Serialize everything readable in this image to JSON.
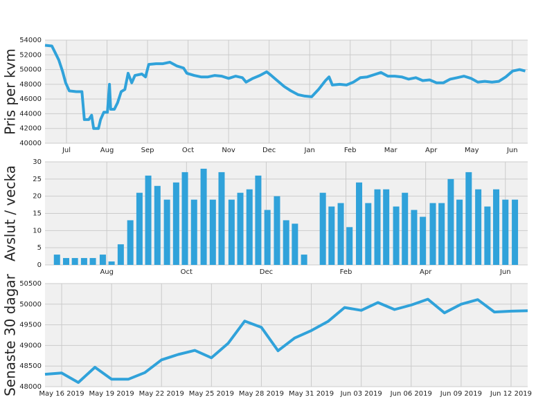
{
  "chart_data": [
    {
      "type": "line",
      "y_label": "Pris per kvm",
      "color": "#30a2da",
      "grid": true,
      "x": [
        -0.53,
        -0.36,
        -0.27,
        -0.19,
        -0.1,
        -0.02,
        0.07,
        0.24,
        0.38,
        0.44,
        0.55,
        0.62,
        0.67,
        0.79,
        0.84,
        0.92,
        1.01,
        1.06,
        1.09,
        1.18,
        1.26,
        1.35,
        1.44,
        1.52,
        1.61,
        1.69,
        1.86,
        1.95,
        2.03,
        2.21,
        2.38,
        2.55,
        2.72,
        2.89,
        2.97,
        3.15,
        3.32,
        3.49,
        3.66,
        3.83,
        4.0,
        4.17,
        4.34,
        4.43,
        4.6,
        4.77,
        4.94,
        5.03,
        5.2,
        5.37,
        5.54,
        5.71,
        5.88,
        6.05,
        6.22,
        6.39,
        6.48,
        6.56,
        6.74,
        6.91,
        7.08,
        7.25,
        7.42,
        7.59,
        7.76,
        7.93,
        8.1,
        8.27,
        8.44,
        8.62,
        8.79,
        8.96,
        9.13,
        9.3,
        9.47,
        9.64,
        9.81,
        9.98,
        10.15,
        10.32,
        10.5,
        10.67,
        10.84,
        11.01,
        11.18,
        11.32
      ],
      "values": [
        53300,
        53200,
        52200,
        51300,
        49800,
        48200,
        47100,
        47000,
        47000,
        43200,
        43200,
        43800,
        42000,
        42000,
        43200,
        44200,
        44200,
        48000,
        44600,
        44600,
        45500,
        47000,
        47300,
        49500,
        48200,
        49200,
        49400,
        49000,
        50700,
        50800,
        50800,
        51000,
        50500,
        50200,
        49500,
        49200,
        49000,
        49000,
        49200,
        49100,
        48800,
        49100,
        48900,
        48300,
        48800,
        49200,
        49700,
        49300,
        48500,
        47700,
        47100,
        46600,
        46400,
        46300,
        47300,
        48500,
        49000,
        47900,
        48000,
        47900,
        48300,
        48900,
        49000,
        49300,
        49600,
        49100,
        49100,
        49000,
        48700,
        48900,
        48500,
        48600,
        48200,
        48200,
        48700,
        48900,
        49100,
        48800,
        48300,
        48400,
        48300,
        48400,
        49000,
        49800,
        50000,
        49800
      ],
      "xlim": [
        -0.53,
        11.38
      ],
      "xticks": [
        {
          "value": 0,
          "label": "Jul"
        },
        {
          "value": 1,
          "label": "Aug"
        },
        {
          "value": 2,
          "label": "Sep"
        },
        {
          "value": 3,
          "label": "Oct"
        },
        {
          "value": 4,
          "label": "Nov"
        },
        {
          "value": 5,
          "label": "Dec"
        },
        {
          "value": 6,
          "label": "Jan"
        },
        {
          "value": 7,
          "label": "Feb"
        },
        {
          "value": 8,
          "label": "Mar"
        },
        {
          "value": 9,
          "label": "Apr"
        },
        {
          "value": 10,
          "label": "May"
        },
        {
          "value": 11,
          "label": "Jun"
        }
      ],
      "ylim": [
        40000,
        54000
      ],
      "yticks": [
        40000,
        42000,
        44000,
        46000,
        48000,
        50000,
        52000,
        54000
      ]
    },
    {
      "type": "bar",
      "y_label": "Avslut / vecka",
      "color": "#30a2da",
      "grid": true,
      "x": [
        -0.25,
        -0.02,
        0.2,
        0.43,
        0.65,
        0.9,
        1.12,
        1.35,
        1.59,
        1.82,
        2.04,
        2.27,
        2.51,
        2.74,
        2.96,
        3.19,
        3.43,
        3.66,
        3.88,
        4.13,
        4.35,
        4.58,
        4.8,
        5.03,
        5.27,
        5.5,
        5.72,
        5.95,
        6.42,
        6.64,
        6.87,
        7.09,
        7.33,
        7.56,
        7.79,
        8.01,
        8.26,
        8.48,
        8.71,
        8.93,
        9.18,
        9.4,
        9.63,
        9.85,
        10.08,
        10.32,
        10.55,
        10.77,
        11.0,
        11.24
      ],
      "values": [
        3,
        2,
        2,
        2,
        2,
        3,
        1,
        6,
        13,
        21,
        26,
        23,
        19,
        24,
        27,
        19,
        28,
        19,
        27,
        19,
        21,
        22,
        26,
        16,
        20,
        13,
        12,
        3,
        21,
        17,
        18,
        11,
        24,
        18,
        22,
        22,
        17,
        21,
        16,
        14,
        18,
        18,
        25,
        19,
        27,
        22,
        17,
        22,
        19,
        19
      ],
      "xlim": [
        -0.55,
        11.56
      ],
      "xticks": [
        {
          "value": 1,
          "label": "Aug"
        },
        {
          "value": 3,
          "label": "Oct"
        },
        {
          "value": 5,
          "label": "Dec"
        },
        {
          "value": 7,
          "label": "Feb"
        },
        {
          "value": 9,
          "label": "Apr"
        },
        {
          "value": 11,
          "label": "Jun"
        }
      ],
      "ylim": [
        0,
        30
      ],
      "yticks": [
        0,
        5,
        10,
        15,
        20,
        25,
        30
      ]
    },
    {
      "type": "line",
      "y_label": "Senaste 30 dagar",
      "color": "#30a2da",
      "grid": true,
      "x": [
        "2019-05-15",
        "2019-05-16",
        "2019-05-17",
        "2019-05-18",
        "2019-05-19",
        "2019-05-20",
        "2019-05-21",
        "2019-05-22",
        "2019-05-23",
        "2019-05-24",
        "2019-05-25",
        "2019-05-26",
        "2019-05-27",
        "2019-05-28",
        "2019-05-29",
        "2019-05-30",
        "2019-05-31",
        "2019-06-01",
        "2019-06-02",
        "2019-06-03",
        "2019-06-04",
        "2019-06-05",
        "2019-06-06",
        "2019-06-07",
        "2019-06-08",
        "2019-06-09",
        "2019-06-10",
        "2019-06-11",
        "2019-06-12",
        "2019-06-13"
      ],
      "values": [
        48300,
        48330,
        48100,
        48470,
        48180,
        48180,
        48340,
        48650,
        48780,
        48880,
        48700,
        49050,
        49590,
        49440,
        48870,
        49180,
        49360,
        49580,
        49920,
        49850,
        50040,
        49870,
        49980,
        50120,
        49790,
        50000,
        50110,
        49810,
        49830,
        49840
      ],
      "xlim": [
        "2019-05-15",
        "2019-06-13"
      ],
      "xticks": [
        {
          "value": "2019-05-16",
          "label": "May 16 2019"
        },
        {
          "value": "2019-05-19",
          "label": "May 19 2019"
        },
        {
          "value": "2019-05-22",
          "label": "May 22 2019"
        },
        {
          "value": "2019-05-25",
          "label": "May 25 2019"
        },
        {
          "value": "2019-05-28",
          "label": "May 28 2019"
        },
        {
          "value": "2019-05-31",
          "label": "May 31 2019"
        },
        {
          "value": "2019-06-03",
          "label": "Jun 03 2019"
        },
        {
          "value": "2019-06-06",
          "label": "Jun 06 2019"
        },
        {
          "value": "2019-06-09",
          "label": "Jun 09 2019"
        },
        {
          "value": "2019-06-12",
          "label": "Jun 12 2019"
        }
      ],
      "ylim": [
        48000,
        50500
      ],
      "yticks": [
        48000,
        48500,
        49000,
        49500,
        50000,
        50500
      ]
    }
  ]
}
